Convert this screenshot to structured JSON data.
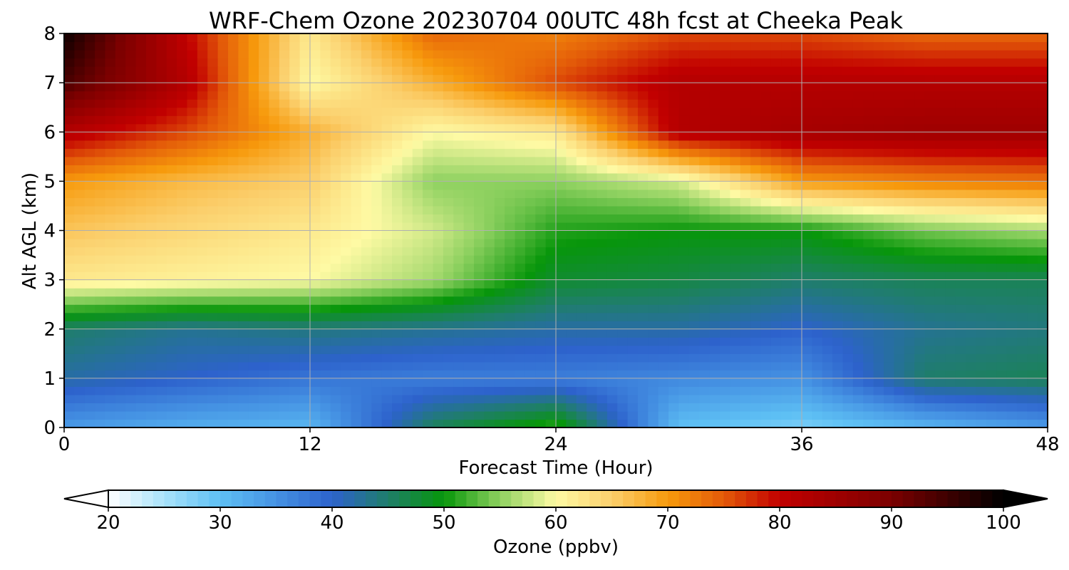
{
  "chart_data": {
    "type": "heatmap",
    "title": "WRF-Chem Ozone  20230704 00UTC 48h fcst at Cheeka Peak",
    "xlabel": "Forecast Time (Hour)",
    "ylabel": "Alt AGL (km)",
    "xlim": [
      0,
      48
    ],
    "ylim": [
      0,
      8
    ],
    "xticks": [
      0,
      12,
      24,
      36,
      48
    ],
    "yticks": [
      0,
      1,
      2,
      3,
      4,
      5,
      6,
      7,
      8
    ],
    "grid": true,
    "x": [
      0,
      6,
      12,
      18,
      24,
      30,
      36,
      42,
      48
    ],
    "y": [
      0,
      1,
      2,
      3,
      4,
      5,
      6,
      7,
      8
    ],
    "z": [
      [
        34,
        32,
        31,
        46,
        52,
        30,
        28,
        31,
        34
      ],
      [
        42,
        40,
        38,
        37,
        37,
        36,
        35,
        45,
        46
      ],
      [
        45,
        43,
        44,
        43,
        42,
        42,
        40,
        43,
        44
      ],
      [
        62,
        61,
        60,
        56,
        48,
        47,
        45,
        46,
        46
      ],
      [
        66,
        64,
        62,
        58,
        51,
        50,
        50,
        54,
        56
      ],
      [
        70,
        67,
        65,
        55,
        55,
        58,
        70,
        72,
        73
      ],
      [
        82,
        76,
        68,
        60,
        62,
        82,
        84,
        85,
        85
      ],
      [
        94,
        82,
        60,
        68,
        76,
        82,
        82,
        82,
        82
      ],
      [
        99,
        80,
        62,
        74,
        72,
        76,
        76,
        74,
        74
      ]
    ],
    "colorbar": {
      "label": "Ozone  (ppbv)",
      "min": 20,
      "max": 100,
      "ticks": [
        20,
        30,
        40,
        50,
        60,
        70,
        80,
        90,
        100
      ],
      "extend": "both",
      "colors": [
        {
          "value": 20,
          "color": "#ffffff"
        },
        {
          "value": 25,
          "color": "#a8e2fb"
        },
        {
          "value": 30,
          "color": "#5ec0f4"
        },
        {
          "value": 35,
          "color": "#4592e3"
        },
        {
          "value": 40,
          "color": "#2d62cc"
        },
        {
          "value": 45,
          "color": "#1f7e6a"
        },
        {
          "value": 50,
          "color": "#07960a"
        },
        {
          "value": 55,
          "color": "#8ed160"
        },
        {
          "value": 60,
          "color": "#fefaa4"
        },
        {
          "value": 65,
          "color": "#fbcf6c"
        },
        {
          "value": 70,
          "color": "#f79a0c"
        },
        {
          "value": 75,
          "color": "#e35a09"
        },
        {
          "value": 80,
          "color": "#c20000"
        },
        {
          "value": 90,
          "color": "#7b0000"
        },
        {
          "value": 100,
          "color": "#000000"
        }
      ]
    }
  }
}
